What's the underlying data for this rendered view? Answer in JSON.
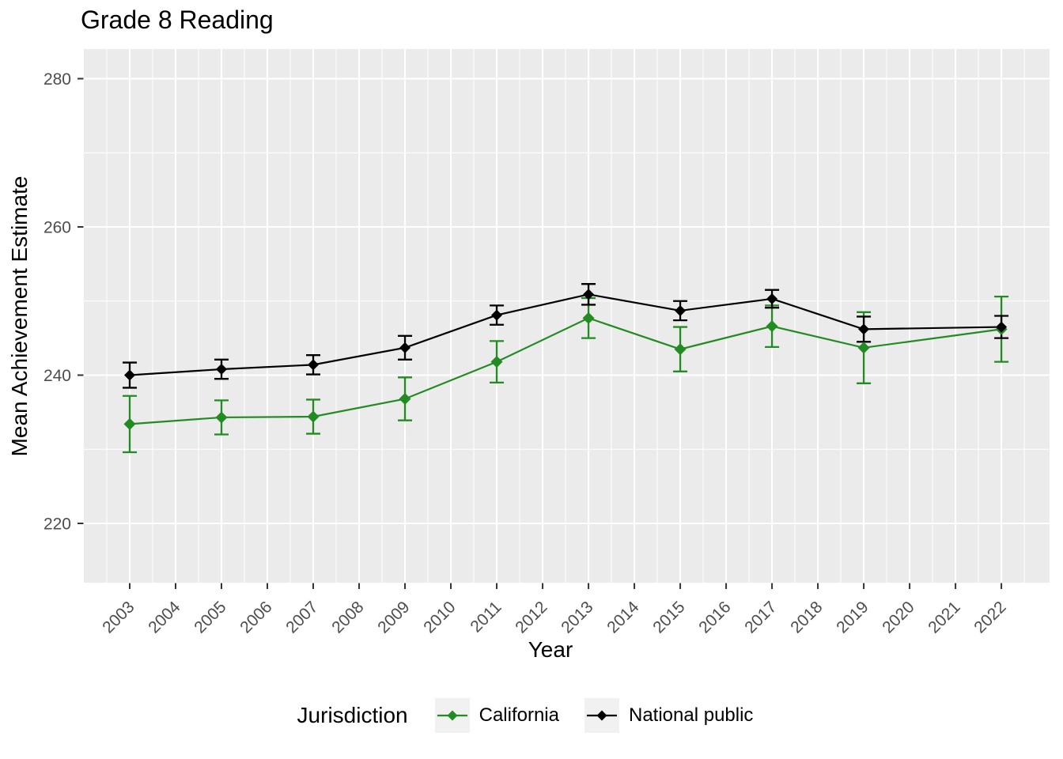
{
  "chart_data": {
    "type": "line",
    "title": "Grade 8 Reading",
    "xlabel": "Year",
    "ylabel": "Mean Achievement Estimate",
    "legend_title": "Jurisdiction",
    "legend_position": "bottom",
    "grid": "on",
    "panel_color": "#EBEBEB",
    "grid_color": "#FFFFFF",
    "tick_color": "#333333",
    "tick_label_color": "#4D4D4D",
    "xlim": [
      2002,
      2023.05
    ],
    "ylim": [
      212,
      284
    ],
    "x_tick_labels": [
      2003,
      2004,
      2005,
      2006,
      2007,
      2008,
      2009,
      2010,
      2011,
      2012,
      2013,
      2014,
      2015,
      2016,
      2017,
      2018,
      2019,
      2020,
      2021,
      2022
    ],
    "y_tick_labels": [
      220,
      240,
      260,
      280
    ],
    "y_minor_gridlines": [
      230,
      250,
      270
    ],
    "x": [
      2003,
      2005,
      2007,
      2009,
      2011,
      2013,
      2015,
      2017,
      2019,
      2022
    ],
    "series": [
      {
        "name": "California",
        "color": "#228B22",
        "marker": "diamond",
        "values": [
          233.4,
          234.3,
          234.4,
          236.8,
          241.8,
          247.7,
          243.5,
          246.6,
          243.7,
          246.2
        ],
        "error": [
          3.8,
          2.3,
          2.3,
          2.9,
          2.8,
          2.7,
          3.0,
          2.8,
          4.8,
          4.4
        ]
      },
      {
        "name": "National public",
        "color": "#000000",
        "marker": "diamond",
        "values": [
          240.0,
          240.8,
          241.4,
          243.7,
          248.1,
          250.9,
          248.7,
          250.3,
          246.2,
          246.5
        ],
        "error": [
          1.7,
          1.3,
          1.3,
          1.6,
          1.3,
          1.4,
          1.3,
          1.2,
          1.7,
          1.5
        ]
      }
    ]
  }
}
